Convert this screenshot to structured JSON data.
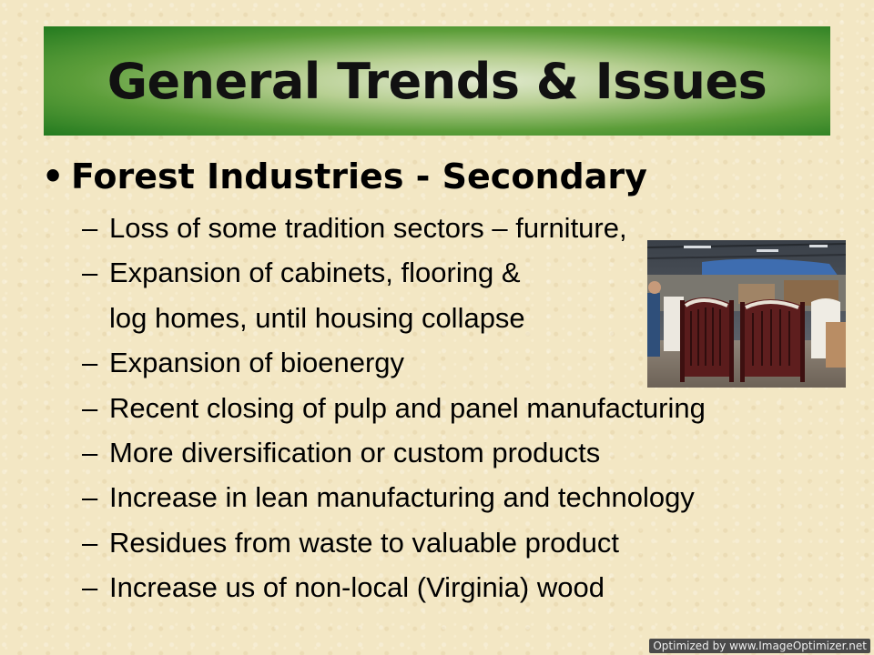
{
  "slide": {
    "title": "General Trends & Issues",
    "bullet_symbol": "•",
    "bullet": "Forest Industries - Secondary",
    "dash": "–",
    "items": [
      "Loss of some tradition sectors – furniture,",
      "Expansion of cabinets, flooring &",
      "log homes, until housing collapse",
      "Expansion of bioenergy",
      "Recent closing of pulp and panel manufacturing",
      "More diversification or custom products",
      "Increase in lean manufacturing and technology",
      "Residues from waste to valuable product",
      "Increase us of non-local (Virginia) wood"
    ]
  },
  "photo": {
    "subject": "crib-factory-photo"
  },
  "watermark": "Optimized by www.ImageOptimizer.net",
  "colors": {
    "title_green": "#237a1f",
    "background": "#f3e7c4"
  }
}
